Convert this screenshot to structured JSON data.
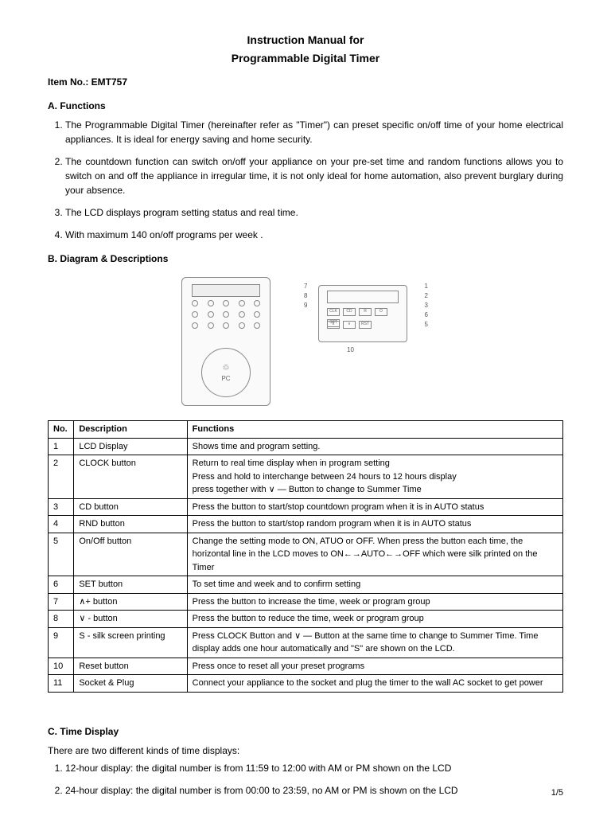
{
  "title1": "Instruction Manual for",
  "title2": "Programmable Digital Timer",
  "itemNo": "Item No.: EMT757",
  "sectionA": "A.  Functions",
  "functionsList": [
    "The Programmable Digital Timer (hereinafter refer as \"Timer\") can preset specific on/off time of your home electrical appliances. It is ideal for energy saving and home security.",
    "The countdown function can switch on/off your appliance on your pre-set time and random functions allows you to switch on and off the appliance in irregular time, it is not only ideal for home automation, also prevent burglary during your absence.",
    "The LCD displays program setting status and real time.",
    "With maximum 140 on/off programs per week ."
  ],
  "sectionB": "B.  Diagram & Descriptions",
  "socketLabel": "♲\nPC",
  "tableHeaders": {
    "no": "No.",
    "desc": "Description",
    "func": "Functions"
  },
  "tableRows": [
    {
      "no": "1",
      "desc": "LCD Display",
      "func": "Shows time and program setting."
    },
    {
      "no": "2",
      "desc": "CLOCK button",
      "func": "Return to real time display when in program setting\nPress and hold to interchange between 24 hours to 12 hours display\npress together with ∨ — Button to change to Summer Time"
    },
    {
      "no": "3",
      "desc": "CD button",
      "func": "Press the button to start/stop countdown program when it is in AUTO status"
    },
    {
      "no": "4",
      "desc": "RND button",
      "func": "Press the button to start/stop random program when it is in AUTO status"
    },
    {
      "no": "5",
      "desc": "On/Off button",
      "func": "Change the setting mode to ON, ATUO or OFF. When press the button each time, the horizontal line in the LCD moves to ON←→AUTO←→OFF which were silk printed on the Timer"
    },
    {
      "no": "6",
      "desc": "SET button",
      "func": "To set time and week and to confirm setting"
    },
    {
      "no": "7",
      "desc": "∧+ button",
      "func": "Press the button to increase the time, week or program group"
    },
    {
      "no": "8",
      "desc": "∨ - button",
      "func": "Press the button to reduce the time, week or program group"
    },
    {
      "no": "9",
      "desc": "S - silk screen printing",
      "func": "Press CLOCK Button and ∨ —  Button at the same time to change to Summer Time. Time display adds one hour automatically and \"S\" are shown on the LCD."
    },
    {
      "no": "10",
      "desc": "Reset button",
      "func": "Press once to reset all your preset programs"
    },
    {
      "no": "11",
      "desc": "Socket & Plug",
      "func": "Connect your appliance to the socket and plug the timer to the wall AC socket to get power"
    }
  ],
  "sectionC": "C.  Time Display",
  "timeIntro": "There are two different kinds of time displays:",
  "timeList": [
    "12-hour display: the digital number is from 11:59 to 12:00 with AM or PM shown on the LCD",
    "24-hour display: the digital number is from 00:00 to 23:59, no AM or PM is shown on the LCD"
  ],
  "pageNum": "1/5"
}
